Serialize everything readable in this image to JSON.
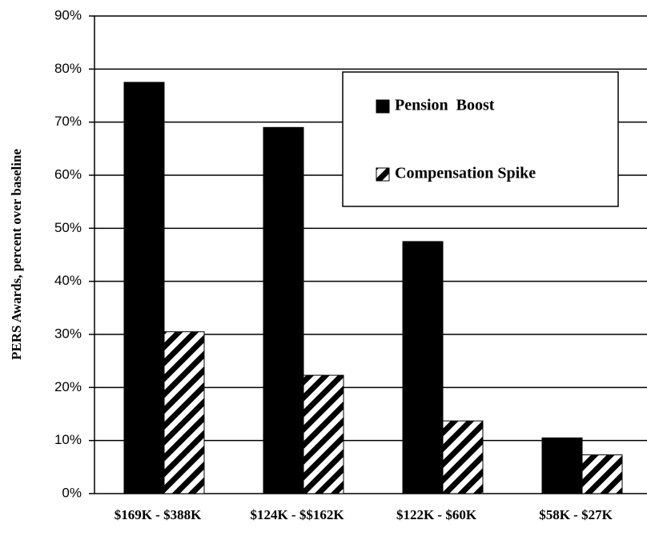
{
  "chart_data": {
    "type": "bar",
    "y_label": "PERS Awards, percent over baseline",
    "categories": [
      "$169K - $388K",
      "$124K - $$162K",
      "$122K -  $60K",
      "$58K - $27K"
    ],
    "series": [
      {
        "name": "Pension  Boost",
        "color": "#000000",
        "pattern": "solid",
        "values": [
          77.5,
          69,
          47.5,
          10.5
        ]
      },
      {
        "name": "Compensation Spike",
        "color": "#000000",
        "pattern": "hatch",
        "values": [
          30.5,
          22.3,
          13.7,
          7.3
        ]
      }
    ],
    "ylim": [
      0,
      90
    ],
    "yticks": [
      {
        "value": 0,
        "label": "0%"
      },
      {
        "value": 10,
        "label": "10%"
      },
      {
        "value": 20,
        "label": "20%"
      },
      {
        "value": 30,
        "label": "30%"
      },
      {
        "value": 40,
        "label": "40%"
      },
      {
        "value": 50,
        "label": "50%"
      },
      {
        "value": 60,
        "label": "60%"
      },
      {
        "value": 70,
        "label": "70%"
      },
      {
        "value": 80,
        "label": "80%"
      },
      {
        "value": 90,
        "label": "90%"
      }
    ],
    "grid": true
  }
}
